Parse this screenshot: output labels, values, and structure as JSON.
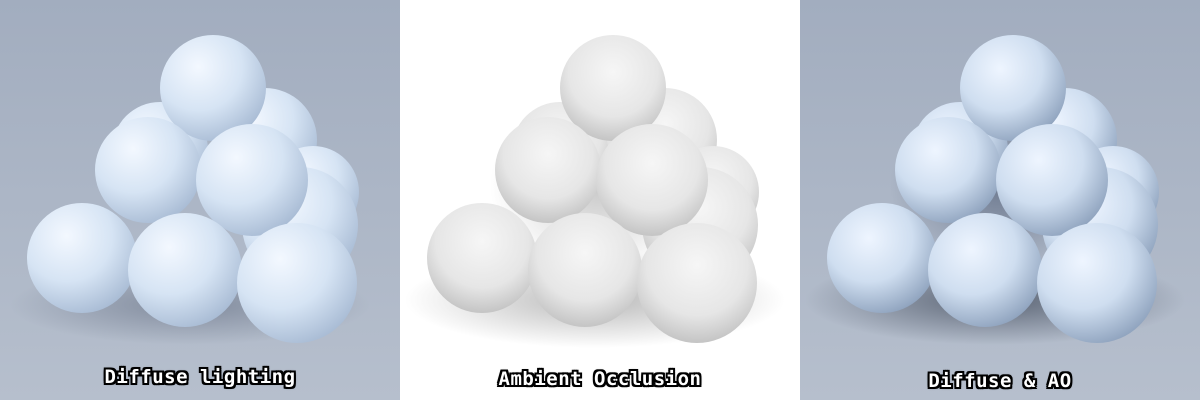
{
  "panels": [
    {
      "caption": "Diffuse lighting",
      "background": "#a4afc2",
      "sphere_color": "#d8e6f5",
      "shading": "diffuse"
    },
    {
      "caption": "Ambient Occlusion",
      "background": "#ffffff",
      "sphere_color": "#eeeeee",
      "shading": "ambient-occlusion"
    },
    {
      "caption": "Diffuse & AO",
      "background": "#a4afc2",
      "sphere_color": "#d8e6f5",
      "shading": "diffuse-and-ao"
    }
  ]
}
